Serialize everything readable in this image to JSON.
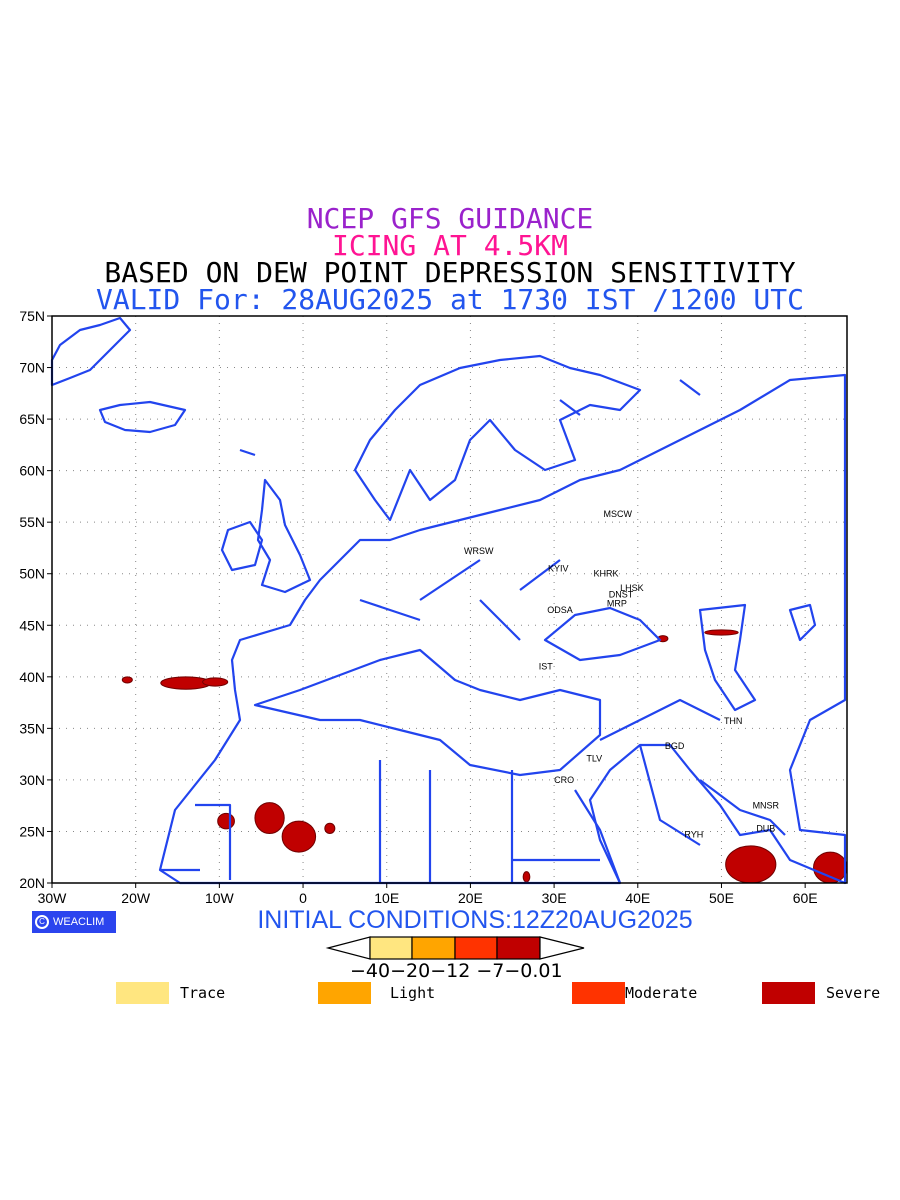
{
  "titles": {
    "line1": "NCEP GFS GUIDANCE",
    "line2": "ICING AT 4.5KM",
    "line3": "BASED ON DEW POINT DEPRESSION SENSITIVITY",
    "line4": "VALID For: 28AUG2025 at 1730 IST /1200 UTC"
  },
  "axes": {
    "lon_labels": [
      "30W",
      "20W",
      "10W",
      "0",
      "10E",
      "20E",
      "30E",
      "40E",
      "50E",
      "60E"
    ],
    "lat_labels": [
      "20N",
      "25N",
      "30N",
      "35N",
      "40N",
      "45N",
      "50N",
      "55N",
      "60N",
      "65N",
      "70N",
      "75N"
    ],
    "lon_range": [
      -30,
      65
    ],
    "lat_range": [
      20,
      75
    ],
    "grid": "dotted"
  },
  "cities": [
    {
      "name": "MSCW",
      "lon": 37.6,
      "lat": 55.8
    },
    {
      "name": "WRSW",
      "lon": 21.0,
      "lat": 52.2
    },
    {
      "name": "KYIV",
      "lon": 30.5,
      "lat": 50.5
    },
    {
      "name": "KHRK",
      "lon": 36.2,
      "lat": 50.0
    },
    {
      "name": "LHSK",
      "lon": 39.3,
      "lat": 48.6
    },
    {
      "name": "DNST",
      "lon": 38.0,
      "lat": 48.0
    },
    {
      "name": "MRP",
      "lon": 37.5,
      "lat": 47.1
    },
    {
      "name": "ODSA",
      "lon": 30.7,
      "lat": 46.5
    },
    {
      "name": "IST",
      "lon": 29.0,
      "lat": 41.0
    },
    {
      "name": "THN",
      "lon": 51.4,
      "lat": 35.7
    },
    {
      "name": "BGD",
      "lon": 44.4,
      "lat": 33.3
    },
    {
      "name": "TLV",
      "lon": 34.8,
      "lat": 32.1
    },
    {
      "name": "CRO",
      "lon": 31.2,
      "lat": 30.0
    },
    {
      "name": "MNSR",
      "lon": 55.3,
      "lat": 27.5
    },
    {
      "name": "DUB",
      "lon": 55.3,
      "lat": 25.3
    },
    {
      "name": "RYH",
      "lon": 46.7,
      "lat": 24.7
    }
  ],
  "colors": {
    "coast": "#2244ee",
    "trace": "#ffe680",
    "light": "#ffa500",
    "moderate": "#ff3300",
    "severe": "#c00000"
  },
  "icing_areas": [
    {
      "lon": -14.0,
      "lat": 39.4,
      "w": 6,
      "h": 1.2
    },
    {
      "lon": -10.5,
      "lat": 39.5,
      "w": 3,
      "h": 0.8
    },
    {
      "lon": -21.0,
      "lat": 39.7,
      "w": 1.2,
      "h": 0.6
    },
    {
      "lon": -9.2,
      "lat": 26.0,
      "w": 2,
      "h": 1.5
    },
    {
      "lon": -4.0,
      "lat": 26.3,
      "w": 3.5,
      "h": 3
    },
    {
      "lon": -0.5,
      "lat": 24.5,
      "w": 4,
      "h": 3
    },
    {
      "lon": 3.2,
      "lat": 25.3,
      "w": 1.2,
      "h": 1
    },
    {
      "lon": 26.7,
      "lat": 20.6,
      "w": 0.8,
      "h": 1
    },
    {
      "lon": 53.5,
      "lat": 21.8,
      "w": 6,
      "h": 3.6
    },
    {
      "lon": 63.0,
      "lat": 21.5,
      "w": 4,
      "h": 3
    },
    {
      "lon": 50.0,
      "lat": 44.3,
      "w": 4,
      "h": 0.5
    },
    {
      "lon": 43.0,
      "lat": 43.7,
      "w": 1.2,
      "h": 0.6
    }
  ],
  "brand": {
    "label": "WEACLIM"
  },
  "initial": "INITIAL CONDITIONS:12Z20AUG2025",
  "colorbar": {
    "labels": "−40−20−12 −7−0.01"
  },
  "legend": [
    {
      "label": "Trace",
      "color": "#ffe680"
    },
    {
      "label": "Light",
      "color": "#ffa500"
    },
    {
      "label": "Moderate",
      "color": "#ff3300"
    },
    {
      "label": "Severe",
      "color": "#c00000"
    }
  ]
}
